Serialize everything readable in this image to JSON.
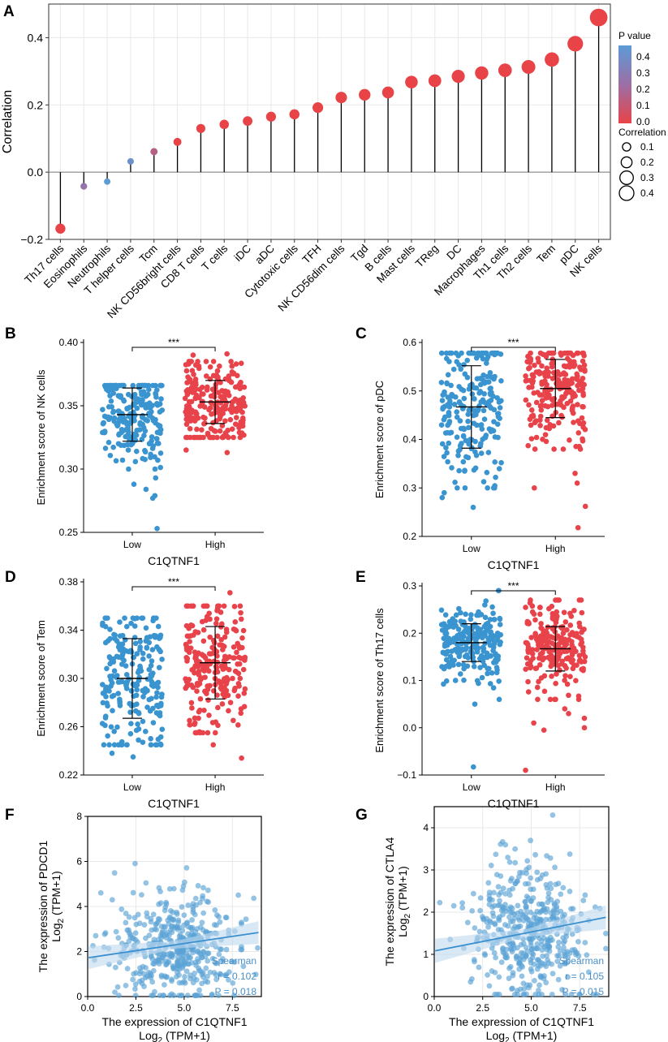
{
  "colors": {
    "low": "#3a94d0",
    "high": "#e8434a",
    "scatter": "#5aa3d6",
    "fit_line": "#3a8fcf",
    "fit_band": "#bfd8ee",
    "stat_text": "#4a90c8",
    "grid": "#e8e8e8",
    "pval_top": "#5d9bd5",
    "pval_mid": "#9b6fa6",
    "pval_bottom": "#e84447"
  },
  "chart_data": [
    {
      "panel": "A",
      "type": "lollipop",
      "ylabel": "Correlation",
      "ylim": [
        -0.2,
        0.5
      ],
      "yticks": [
        -0.2,
        0.0,
        0.2,
        0.4
      ],
      "ytick_labels": [
        "−0.2",
        "0.0",
        "0.2",
        "0.4"
      ],
      "categories": [
        "Th17 cells",
        "Eosinophils",
        "Neutrophils",
        "T helper cells",
        "Tcm",
        "NK CD56bright cells",
        "CD8 T cells",
        "T cells",
        "iDC",
        "aDC",
        "Cytotoxic cells",
        "TFH",
        "NK CD56dim cells",
        "Tgd",
        "B cells",
        "Mast cells",
        "TReg",
        "DC",
        "Macrophages",
        "Th1 cells",
        "Th2 cells",
        "Tem",
        "pDC",
        "NK cells"
      ],
      "values": [
        -0.168,
        -0.042,
        -0.028,
        0.032,
        0.061,
        0.09,
        0.13,
        0.142,
        0.152,
        0.165,
        0.172,
        0.192,
        0.222,
        0.23,
        0.237,
        0.268,
        0.272,
        0.285,
        0.295,
        0.303,
        0.313,
        0.335,
        0.382,
        0.46
      ],
      "pvalues": [
        0.0,
        0.25,
        0.45,
        0.4,
        0.15,
        0.0,
        0.0,
        0.0,
        0.0,
        0.0,
        0.0,
        0.0,
        0.0,
        0.0,
        0.0,
        0.0,
        0.0,
        0.0,
        0.0,
        0.0,
        0.0,
        0.0,
        0.0,
        0.0
      ],
      "legend_pvalue": {
        "title": "P value",
        "ticks": [
          "0.4",
          "0.3",
          "0.2",
          "0.1",
          "0.0"
        ]
      },
      "legend_size": {
        "title": "Correlation",
        "values": [
          "0.1",
          "0.2",
          "0.3",
          "0.4"
        ]
      }
    },
    {
      "panel": "B",
      "type": "jitter",
      "ylabel": "Enrichment score of NK cells",
      "xlabel": "C1QTNF1",
      "categories": [
        "Low",
        "High"
      ],
      "ylim": [
        0.25,
        0.4
      ],
      "yticks": [
        "0.25",
        "0.30",
        "0.35",
        "0.40"
      ],
      "significance": "***",
      "groups": [
        {
          "name": "Low",
          "mean": 0.343,
          "sd": 0.021,
          "min": 0.3,
          "max": 0.366,
          "outliers": [
            0.253,
            0.277,
            0.279,
            0.284,
            0.288,
            0.293
          ]
        },
        {
          "name": "High",
          "mean": 0.353,
          "sd": 0.017,
          "min": 0.325,
          "max": 0.385,
          "outliers": [
            0.313,
            0.315,
            0.39,
            0.391
          ]
        }
      ]
    },
    {
      "panel": "C",
      "type": "jitter",
      "ylabel": "Enrichment score of pDC",
      "xlabel": "C1QTNF1",
      "categories": [
        "Low",
        "High"
      ],
      "ylim": [
        0.2,
        0.6
      ],
      "yticks": [
        "0.2",
        "0.3",
        "0.4",
        "0.5",
        "0.6"
      ],
      "significance": "***",
      "groups": [
        {
          "name": "Low",
          "mean": 0.467,
          "sd": 0.085,
          "min": 0.3,
          "max": 0.578,
          "outliers": [
            0.26,
            0.28,
            0.29
          ]
        },
        {
          "name": "High",
          "mean": 0.505,
          "sd": 0.06,
          "min": 0.38,
          "max": 0.578,
          "outliers": [
            0.218,
            0.262,
            0.3,
            0.31,
            0.33
          ]
        }
      ]
    },
    {
      "panel": "D",
      "type": "jitter",
      "ylabel": "Enrichment score of Tem",
      "xlabel": "C1QTNF1",
      "categories": [
        "Low",
        "High"
      ],
      "ylim": [
        0.22,
        0.38
      ],
      "yticks": [
        "0.22",
        "0.26",
        "0.30",
        "0.34",
        "0.38"
      ],
      "significance": "***",
      "groups": [
        {
          "name": "Low",
          "mean": 0.3,
          "sd": 0.033,
          "min": 0.245,
          "max": 0.35,
          "outliers": [
            0.235,
            0.238
          ]
        },
        {
          "name": "High",
          "mean": 0.313,
          "sd": 0.03,
          "min": 0.255,
          "max": 0.36,
          "outliers": [
            0.234,
            0.245,
            0.371
          ]
        }
      ]
    },
    {
      "panel": "E",
      "type": "jitter",
      "ylabel": "Enrichment score of Th17 cells",
      "xlabel": "C1QTNF1",
      "categories": [
        "Low",
        "High"
      ],
      "ylim": [
        -0.1,
        0.3
      ],
      "yticks": [
        "−0.1",
        "0.0",
        "0.1",
        "0.2",
        "0.3"
      ],
      "significance": "***",
      "groups": [
        {
          "name": "Low",
          "mean": 0.18,
          "sd": 0.04,
          "min": 0.07,
          "max": 0.29,
          "outliers": [
            -0.083,
            0.05,
            0.06
          ]
        },
        {
          "name": "High",
          "mean": 0.167,
          "sd": 0.047,
          "min": 0.06,
          "max": 0.27,
          "outliers": [
            -0.09,
            -0.005,
            0.0,
            0.01,
            0.02,
            0.03,
            0.04
          ]
        }
      ]
    },
    {
      "panel": "F",
      "type": "scatter",
      "ylabel_line1": "The expression of PDCD1",
      "ylabel_line2_pre": "Log",
      "ylabel_line2_sub": "2",
      "ylabel_line2_post": " (TPM+1)",
      "xlabel_line1": "The expression of C1QTNF1",
      "xlabel_line2_pre": "Log",
      "xlabel_line2_sub": "2",
      "xlabel_line2_post": " (TPM+1)",
      "xlim": [
        0,
        9
      ],
      "ylim": [
        0,
        8
      ],
      "xticks": [
        "0.0",
        "2.5",
        "5.0",
        "7.5"
      ],
      "yticks": [
        "0",
        "2",
        "4",
        "6",
        "8"
      ],
      "fit": {
        "intercept": 1.72,
        "slope": 0.127
      },
      "center": [
        4.6,
        2.2
      ],
      "spread": [
        1.6,
        1.25
      ],
      "stats": [
        "Spearman",
        "r = 0.102",
        "P = 0.018"
      ]
    },
    {
      "panel": "G",
      "type": "scatter",
      "ylabel_line1": "The expression of CTLA4",
      "ylabel_line2_pre": "Log",
      "ylabel_line2_sub": "2",
      "ylabel_line2_post": " (TPM+1)",
      "xlabel_line1": "The expression of C1QTNF1",
      "xlabel_line2_pre": "Log",
      "xlabel_line2_sub": "2",
      "xlabel_line2_post": " (TPM+1)",
      "xlim": [
        0,
        9
      ],
      "ylim": [
        0,
        4.5
      ],
      "xticks": [
        "0.0",
        "2.5",
        "5.0",
        "7.5"
      ],
      "yticks": [
        "0",
        "1",
        "2",
        "3",
        "4"
      ],
      "fit": {
        "intercept": 1.08,
        "slope": 0.09
      },
      "center": [
        4.8,
        1.55
      ],
      "spread": [
        1.5,
        0.85
      ],
      "stats": [
        "Spearman",
        "r = 0.105",
        "P = 0.015"
      ]
    }
  ]
}
